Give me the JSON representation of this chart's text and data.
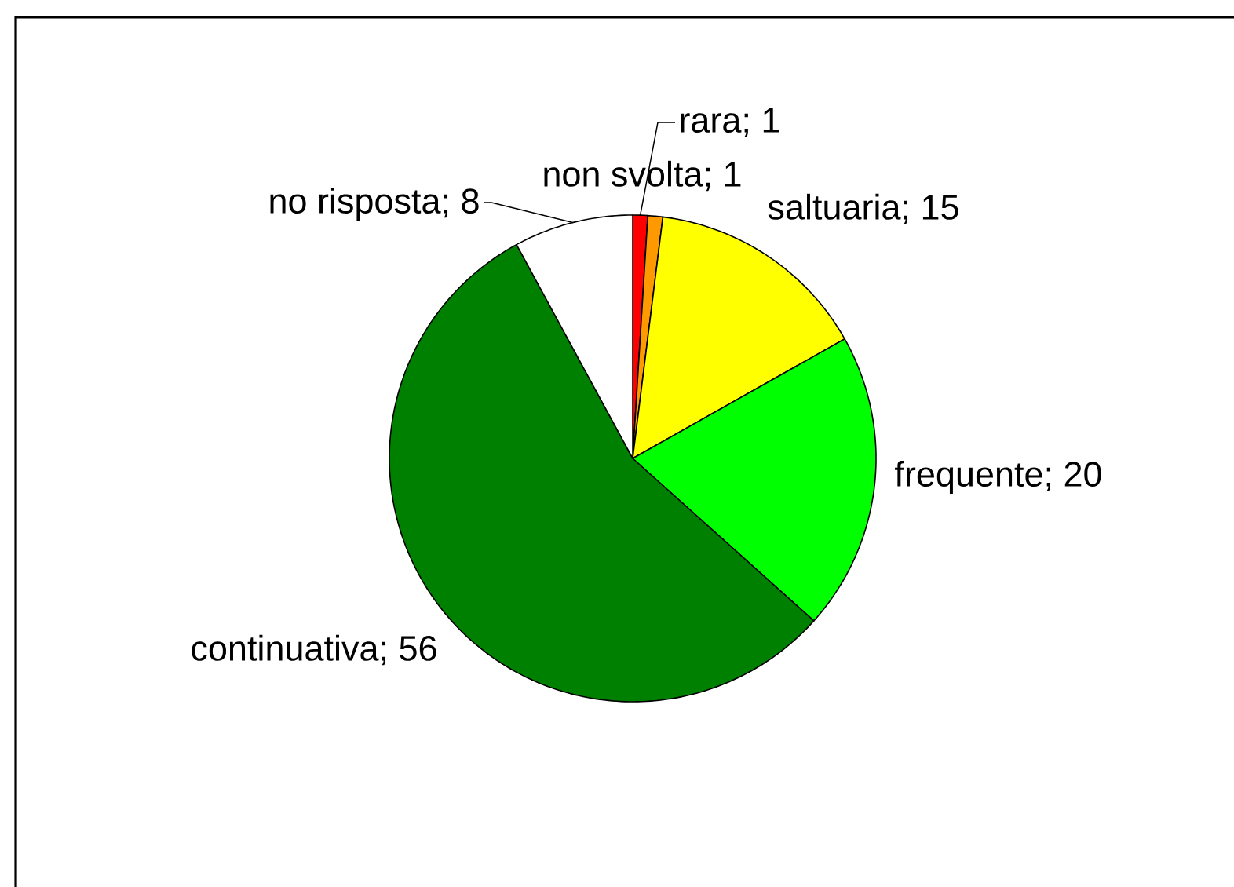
{
  "chart_data": {
    "type": "pie",
    "categories": [
      "rara",
      "non svolta",
      "saltuaria",
      "frequente",
      "continuativa",
      "no risposta"
    ],
    "values": [
      1,
      1,
      15,
      20,
      56,
      8
    ],
    "value_labels": [
      "; 1",
      "; 1",
      "; 15",
      "; 20",
      "; 56",
      "; 8"
    ],
    "colors": [
      "#ff0000",
      "#ff9900",
      "#ffff00",
      "#00ff00",
      "#008000",
      "#ffffff"
    ]
  }
}
